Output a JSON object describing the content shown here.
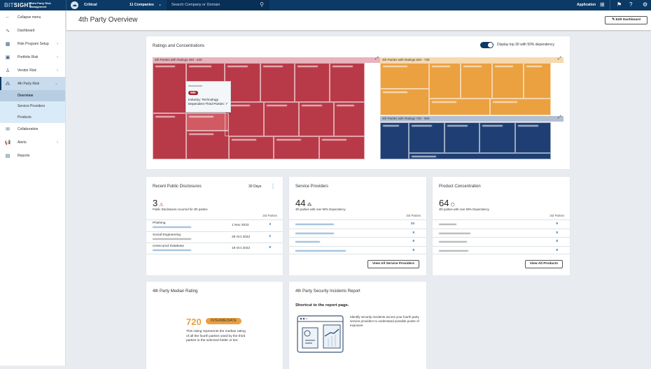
{
  "topbar": {
    "brand_bit": "BIT",
    "brand_sight": "SIGHT",
    "brand_sub": "Third Party Risk Management",
    "folder": "Critical",
    "companies": "11 Companies",
    "search_placeholder": "Search Company or Domain",
    "application": "Application"
  },
  "sidebar": {
    "items": [
      {
        "label": "Collapse menu"
      },
      {
        "label": "Dashboard"
      },
      {
        "label": "Risk Program Setup"
      },
      {
        "label": "Portfolio Risk"
      },
      {
        "label": "Vendor Risk"
      },
      {
        "label": "4th Party Risk"
      },
      {
        "label": "Collaboration"
      },
      {
        "label": "Alerts"
      },
      {
        "label": "Reports"
      }
    ],
    "subitems": [
      {
        "label": "Overview"
      },
      {
        "label": "Service Providers"
      },
      {
        "label": "Products"
      }
    ]
  },
  "header": {
    "title": "4th Party Overview",
    "edit_label": "Edit Dashboard"
  },
  "ratings": {
    "title": "Ratings and Concentrations",
    "toggle_label": "Display top 30 with 50% dependency",
    "toggle_on": true,
    "groups": [
      {
        "label": "4th Parties with Ratings 250 - 630",
        "color": "#b83a48"
      },
      {
        "label": "4th Parties with Ratings 640 - 730",
        "color": "#eba140"
      },
      {
        "label": "4th Parties with Ratings 740 - 900",
        "color": "#1f3f74"
      }
    ],
    "tooltip": {
      "rating": "580",
      "industry": "Industry: Technology",
      "dependents": "Dependent Third Parties: 7"
    }
  },
  "disclosures": {
    "title": "Recent Public Disclosures",
    "period": "30 Days",
    "count": "3",
    "subtitle": "Public Disclosures occurred for 4th parties",
    "col": "3rd Parties",
    "rows": [
      {
        "type": "Phishing",
        "date": "1 Nov 2022",
        "n": "3"
      },
      {
        "type": "Social Engineering",
        "date": "28 Oct 2022",
        "n": "2"
      },
      {
        "type": "Unsecured Database",
        "date": "19 Oct 2022",
        "n": "9"
      }
    ]
  },
  "providers": {
    "title": "Service Providers",
    "count": "44",
    "subtitle": "4th parties with over 50% Dependency",
    "col": "3rd Parties",
    "rows": [
      {
        "n": "10"
      },
      {
        "n": "9"
      },
      {
        "n": "9"
      },
      {
        "n": "8"
      }
    ],
    "button": "View All Service Providers"
  },
  "products": {
    "title": "Product Concentration",
    "count": "64",
    "subtitle": "4th parties with over 50% Dependency",
    "col": "3rd Parties",
    "rows": [
      {
        "n": "9"
      },
      {
        "n": "9"
      },
      {
        "n": "8"
      },
      {
        "n": "8"
      }
    ],
    "button": "View All Products"
  },
  "median": {
    "title": "4th Party Median Rating",
    "rating": "720",
    "badge": "INTERMEDIATE",
    "desc": "This rating represents the median rating of all the fourth parties used by the third parties in the selected folder or tier."
  },
  "incidents": {
    "title": "4th Party Security Incidents Report",
    "shortcut": "Shortcut to the report page.",
    "desc": "Identify security incidents across your fourth party service providers to understand possible points of exposure."
  }
}
